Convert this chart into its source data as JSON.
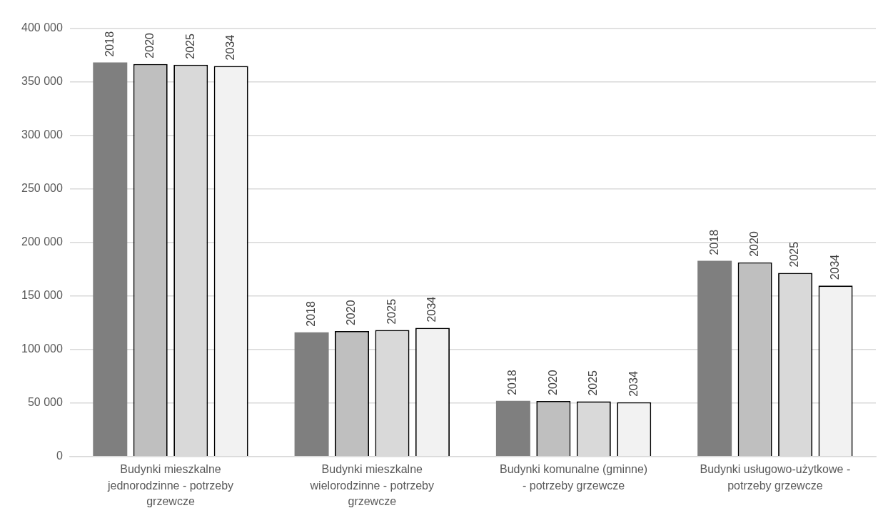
{
  "chart_data": {
    "type": "bar",
    "categories": [
      "Budynki mieszkalne jednorodzinne - potrzeby grzewcze",
      "Budynki mieszkalne wielorodzinne - potrzeby grzewcze",
      "Budynki komunalne (gminne) - potrzeby grzewcze",
      "Budynki usługowo-użytkowe - potrzeby grzewcze"
    ],
    "series": [
      {
        "name": "2018",
        "color": "#7f7f7f",
        "values": [
          368300,
          116100,
          52000,
          183000
        ]
      },
      {
        "name": "2020",
        "color": "#bfbfbf",
        "values": [
          366900,
          117200,
          51900,
          181400
        ]
      },
      {
        "name": "2025",
        "color": "#d9d9d9",
        "values": [
          366200,
          118200,
          51500,
          171600
        ]
      },
      {
        "name": "2034",
        "color": "#f2f2f2",
        "values": [
          365000,
          120300,
          50700,
          159700
        ]
      }
    ],
    "ylim": [
      0,
      400000
    ],
    "yticks": [
      {
        "value": 0,
        "label": "0"
      },
      {
        "value": 50000,
        "label": "50 000"
      },
      {
        "value": 100000,
        "label": "100 000"
      },
      {
        "value": 150000,
        "label": "150 000"
      },
      {
        "value": 200000,
        "label": "200 000"
      },
      {
        "value": 250000,
        "label": "250 000"
      },
      {
        "value": 300000,
        "label": "300 000"
      },
      {
        "value": 350000,
        "label": "350 000"
      },
      {
        "value": 400000,
        "label": "400 000"
      }
    ],
    "grid": "y",
    "legend": false
  }
}
